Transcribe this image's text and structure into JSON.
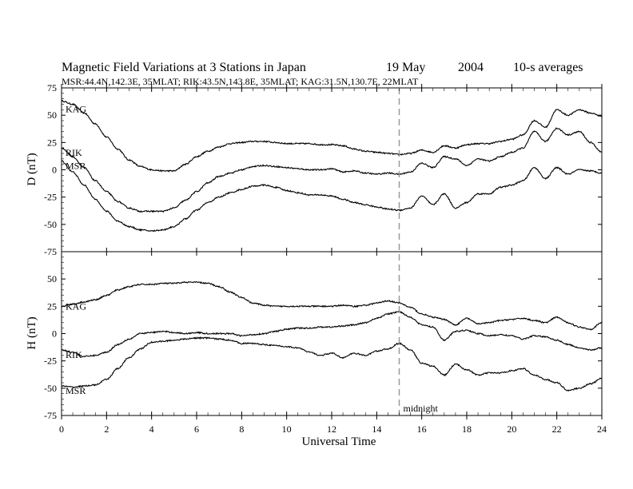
{
  "chart_data": {
    "type": "line",
    "title": {
      "main": "Magnetic Field Variations at 3 Stations in Japan",
      "date": "19 May",
      "year": "2004",
      "averaging": "10-s averages"
    },
    "subtitle": "MSR:44.4N,142.3E, 35MLAT;  RIK:43.5N,143.8E, 35MLAT;  KAG:31.5N,130.7E, 22MLAT",
    "xlabel": "Universal Time",
    "xlim": [
      0,
      24
    ],
    "xticks": [
      "0",
      "2",
      "4",
      "6",
      "8",
      "10",
      "12",
      "14",
      "16",
      "18",
      "20",
      "22",
      "24"
    ],
    "grid": false,
    "annotations": [
      {
        "text": "midnight",
        "x": 15,
        "style": "dashed vertical line"
      }
    ],
    "panels": [
      {
        "ylabel": "D (nT)",
        "ylim": [
          -75,
          75
        ],
        "yticks": [
          "75",
          "50",
          "25",
          "0",
          "-25",
          "-50",
          "-75"
        ],
        "series": [
          {
            "name": "KAG",
            "x": [
              0,
              0.5,
              1,
              1.5,
              2,
              2.5,
              3,
              3.5,
              4,
              4.5,
              5,
              5.5,
              6,
              6.5,
              7,
              7.5,
              8,
              8.5,
              9,
              9.5,
              10,
              10.5,
              11,
              11.5,
              12,
              12.5,
              13,
              13.5,
              14,
              14.5,
              15,
              15.5,
              16,
              16.5,
              17,
              17.5,
              18,
              18.5,
              19,
              19.5,
              20,
              20.5,
              21,
              21.5,
              22,
              22.5,
              23,
              23.5,
              24
            ],
            "values": [
              63,
              60,
              52,
              42,
              30,
              19,
              9,
              3,
              0,
              -1,
              -1,
              5,
              12,
              17,
              21,
              24,
              25,
              26,
              26,
              25,
              24,
              24,
              24,
              23,
              23,
              22,
              19,
              17,
              16,
              15,
              14,
              15,
              18,
              16,
              22,
              20,
              23,
              24,
              24,
              26,
              28,
              32,
              45,
              39,
              55,
              50,
              55,
              52,
              49
            ]
          },
          {
            "name": "RIK",
            "x": [
              0,
              0.5,
              1,
              1.5,
              2,
              2.5,
              3,
              3.5,
              4,
              4.5,
              5,
              5.5,
              6,
              6.5,
              7,
              7.5,
              8,
              8.5,
              9,
              9.5,
              10,
              10.5,
              11,
              11.5,
              12,
              12.5,
              13,
              13.5,
              14,
              14.5,
              15,
              15.5,
              16,
              16.5,
              17,
              17.5,
              18,
              18.5,
              19,
              19.5,
              20,
              20.5,
              21,
              21.5,
              22,
              22.5,
              23,
              23.5,
              24
            ],
            "values": [
              20,
              12,
              2,
              -10,
              -20,
              -29,
              -35,
              -38,
              -38,
              -38,
              -35,
              -28,
              -20,
              -12,
              -6,
              -3,
              0,
              3,
              4,
              3,
              2,
              1,
              0,
              0,
              1,
              -2,
              -1,
              -3,
              -4,
              -3,
              -4,
              -2,
              6,
              2,
              12,
              10,
              4,
              10,
              8,
              12,
              16,
              20,
              35,
              26,
              38,
              32,
              35,
              25,
              16
            ]
          },
          {
            "name": "MSR",
            "x": [
              0,
              0.5,
              1,
              1.5,
              2,
              2.5,
              3,
              3.5,
              4,
              4.5,
              5,
              5.5,
              6,
              6.5,
              7,
              7.5,
              8,
              8.5,
              9,
              9.5,
              10,
              10.5,
              11,
              11.5,
              12,
              12.5,
              13,
              13.5,
              14,
              14.5,
              15,
              15.5,
              16,
              16.5,
              17,
              17.5,
              18,
              18.5,
              19,
              19.5,
              20,
              20.5,
              21,
              21.5,
              22,
              22.5,
              23,
              23.5,
              24
            ],
            "values": [
              8,
              -2,
              -14,
              -27,
              -38,
              -47,
              -52,
              -55,
              -56,
              -55,
              -52,
              -45,
              -37,
              -30,
              -25,
              -21,
              -18,
              -15,
              -14,
              -16,
              -19,
              -21,
              -23,
              -23,
              -24,
              -27,
              -30,
              -32,
              -34,
              -36,
              -37,
              -35,
              -24,
              -32,
              -22,
              -35,
              -30,
              -22,
              -22,
              -16,
              -14,
              -10,
              2,
              -8,
              2,
              -4,
              0,
              -1,
              -3
            ]
          }
        ]
      },
      {
        "ylabel": "H (nT)",
        "ylim": [
          -75,
          75
        ],
        "yticks": [
          "75",
          "50",
          "25",
          "0",
          "-25",
          "-50",
          "-75"
        ],
        "series": [
          {
            "name": "KAG",
            "x": [
              0,
              0.5,
              1,
              1.5,
              2,
              2.5,
              3,
              3.5,
              4,
              4.5,
              5,
              5.5,
              6,
              6.5,
              7,
              7.5,
              8,
              8.5,
              9,
              9.5,
              10,
              10.5,
              11,
              11.5,
              12,
              12.5,
              13,
              13.5,
              14,
              14.5,
              15,
              15.5,
              16,
              16.5,
              17,
              17.5,
              18,
              18.5,
              19,
              19.5,
              20,
              20.5,
              21,
              21.5,
              22,
              22.5,
              23,
              23.5,
              24
            ],
            "values": [
              25,
              27,
              29,
              31,
              35,
              40,
              43,
              45,
              45,
              46,
              46,
              47,
              47,
              46,
              43,
              38,
              33,
              28,
              26,
              25,
              25,
              25,
              25,
              25,
              25,
              26,
              25,
              26,
              28,
              30,
              28,
              24,
              18,
              15,
              13,
              8,
              14,
              9,
              10,
              12,
              13,
              14,
              12,
              10,
              15,
              10,
              6,
              4,
              10
            ]
          },
          {
            "name": "RIK",
            "x": [
              0,
              0.5,
              1,
              1.5,
              2,
              2.5,
              3,
              3.5,
              4,
              4.5,
              5,
              5.5,
              6,
              6.5,
              7,
              7.5,
              8,
              8.5,
              9,
              9.5,
              10,
              10.5,
              11,
              11.5,
              12,
              12.5,
              13,
              13.5,
              14,
              14.5,
              15,
              15.5,
              16,
              16.5,
              17,
              17.5,
              18,
              18.5,
              19,
              19.5,
              20,
              20.5,
              21,
              21.5,
              22,
              22.5,
              23,
              23.5,
              24
            ],
            "values": [
              -15,
              -17,
              -21,
              -20,
              -17,
              -10,
              -5,
              0,
              1,
              2,
              1,
              0,
              1,
              0,
              0,
              0,
              -2,
              -1,
              0,
              2,
              4,
              5,
              5,
              6,
              6,
              7,
              8,
              10,
              14,
              18,
              20,
              15,
              8,
              6,
              -6,
              2,
              3,
              0,
              -2,
              -1,
              -2,
              -5,
              -2,
              -3,
              -6,
              -10,
              -13,
              -15,
              -13
            ]
          },
          {
            "name": "MSR",
            "x": [
              0,
              0.5,
              1,
              1.5,
              2,
              2.5,
              3,
              3.5,
              4,
              4.5,
              5,
              5.5,
              6,
              6.5,
              7,
              7.5,
              8,
              8.5,
              9,
              9.5,
              10,
              10.5,
              11,
              11.5,
              12,
              12.5,
              13,
              13.5,
              14,
              14.5,
              15,
              15.5,
              16,
              16.5,
              17,
              17.5,
              18,
              18.5,
              19,
              19.5,
              20,
              20.5,
              21,
              21.5,
              22,
              22.5,
              23,
              23.5,
              24
            ],
            "values": [
              -48,
              -49,
              -48,
              -47,
              -42,
              -32,
              -22,
              -14,
              -8,
              -7,
              -6,
              -5,
              -4,
              -4,
              -5,
              -6,
              -9,
              -9,
              -10,
              -11,
              -12,
              -13,
              -17,
              -20,
              -18,
              -22,
              -18,
              -20,
              -16,
              -14,
              -9,
              -15,
              -27,
              -30,
              -38,
              -28,
              -33,
              -38,
              -36,
              -36,
              -34,
              -32,
              -38,
              -42,
              -45,
              -52,
              -50,
              -46,
              -41
            ]
          }
        ]
      }
    ]
  }
}
